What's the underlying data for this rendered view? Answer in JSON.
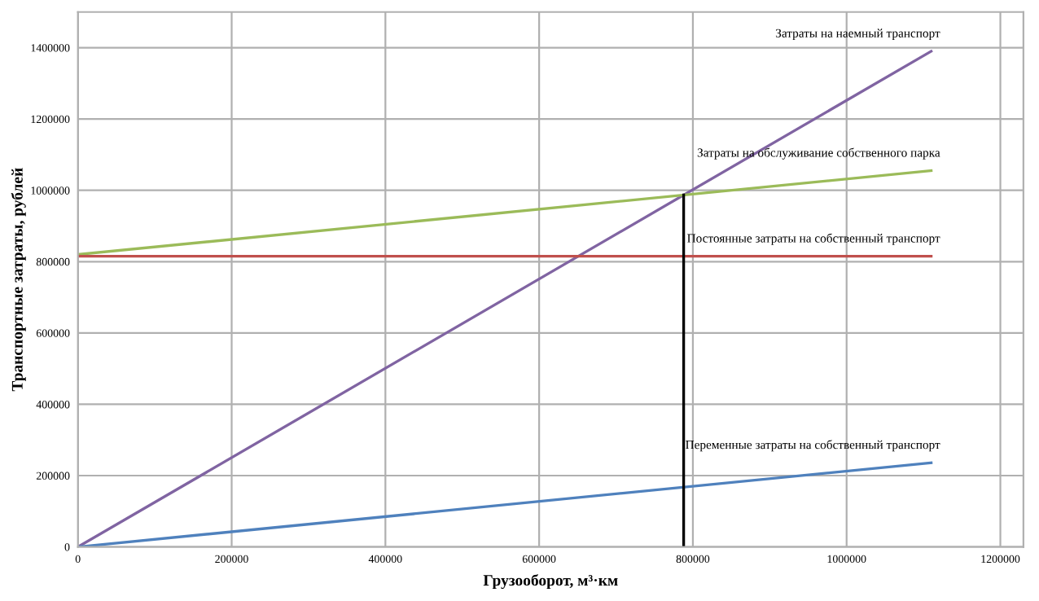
{
  "chart_data": {
    "type": "line",
    "xlabel": "Грузооборот, м³·км",
    "ylabel": "Транспортные затраты, рублей",
    "xlim": [
      0,
      1230000
    ],
    "ylim": [
      0,
      1500000
    ],
    "xticks": [
      0,
      200000,
      400000,
      600000,
      800000,
      1000000,
      1200000
    ],
    "yticks": [
      0,
      200000,
      400000,
      600000,
      800000,
      1000000,
      1200000,
      1400000
    ],
    "grid": true,
    "legend": false,
    "marker": "none",
    "line_style": "solid",
    "series": [
      {
        "name": "Затраты на наемный транспорт",
        "color": "#8064a2",
        "x": [
          0,
          1110000
        ],
        "values": [
          0,
          1390000
        ]
      },
      {
        "name": "Затраты на обслуживание собственного парка",
        "color": "#9bbb59",
        "x": [
          0,
          1110000
        ],
        "values": [
          820000,
          1055000
        ]
      },
      {
        "name": "Постоянные затраты на собственный транспорт",
        "color": "#c0504d",
        "x": [
          0,
          1110000
        ],
        "values": [
          815000,
          815000
        ]
      },
      {
        "name": "Переменные затраты на собственный транспорт",
        "color": "#4f81bd",
        "x": [
          0,
          1110000
        ],
        "values": [
          0,
          236000
        ]
      },
      {
        "color": "#000000",
        "x": [
          788000,
          788000
        ],
        "values": [
          0,
          987000
        ]
      }
    ]
  }
}
